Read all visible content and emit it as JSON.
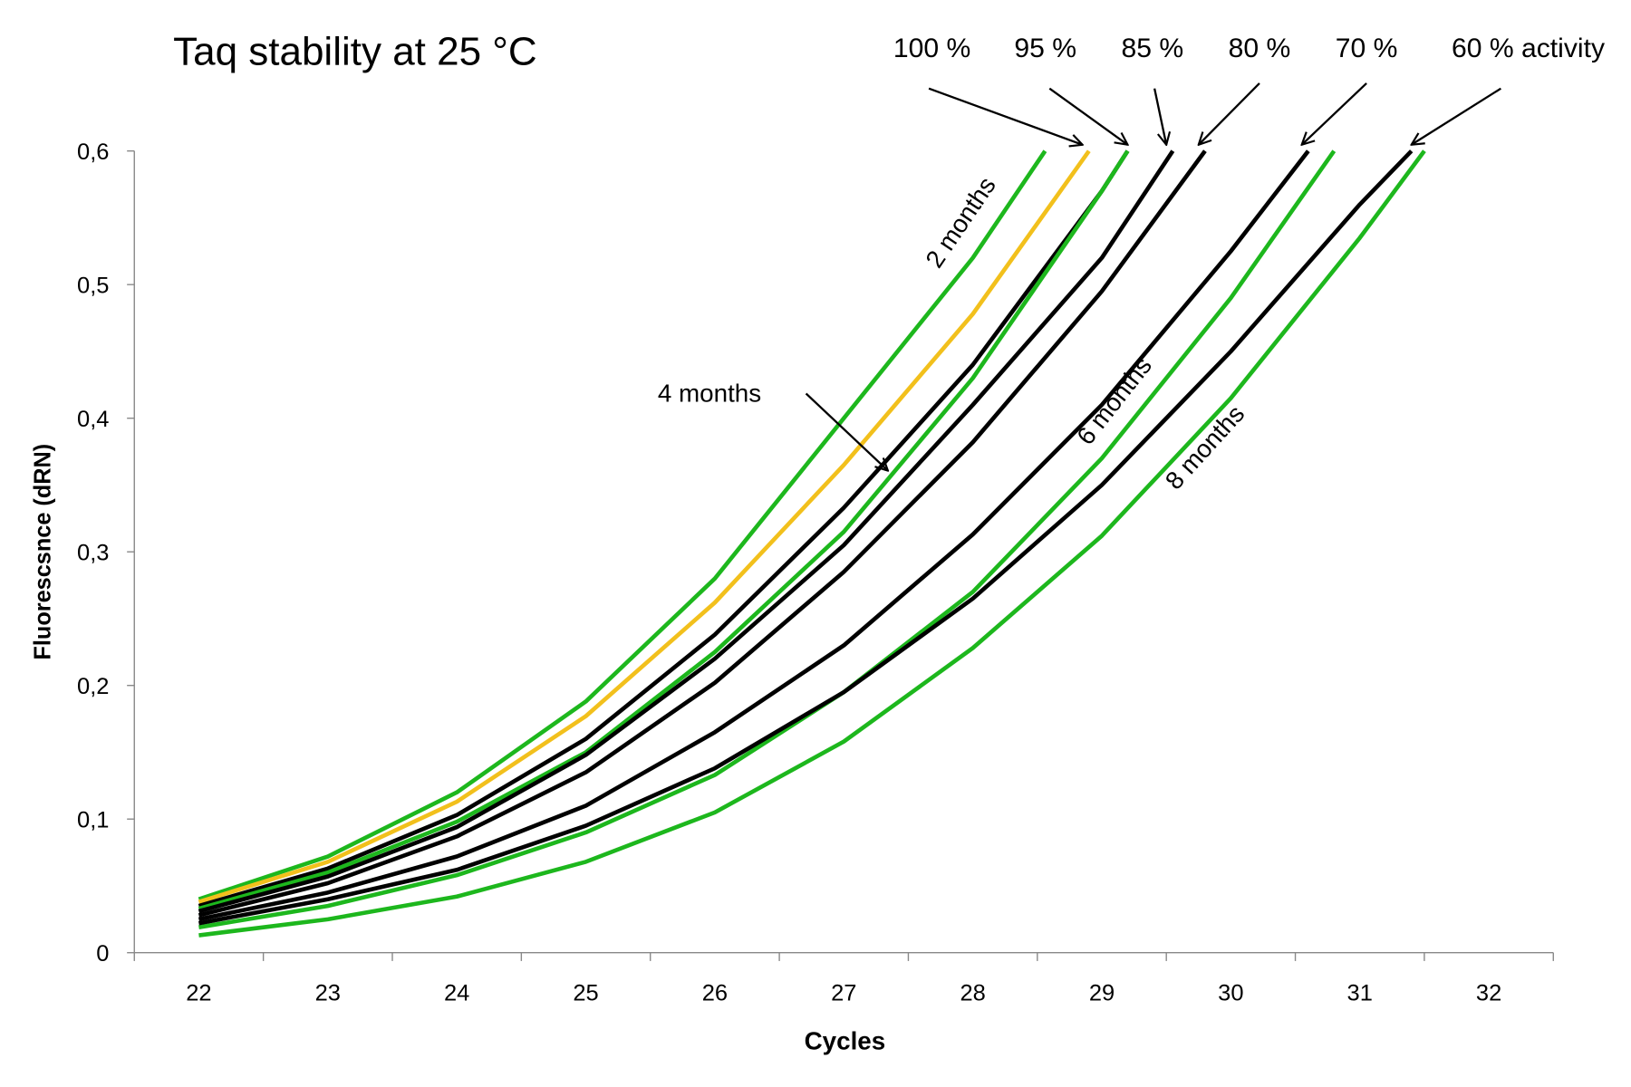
{
  "chart_data": {
    "type": "line",
    "title": "Taq stability at 25 °C",
    "xlabel": "Cycles",
    "ylabel": "Fluorescsnce (dRN)",
    "xlim": [
      21.5,
      32.5
    ],
    "ylim": [
      0,
      0.6
    ],
    "x_ticks": [
      "22",
      "23",
      "24",
      "25",
      "26",
      "27",
      "28",
      "29",
      "30",
      "31",
      "32"
    ],
    "y_ticks": [
      "0",
      "0,1",
      "0,2",
      "0,3",
      "0,4",
      "0,5",
      "0,6"
    ],
    "grid": false,
    "series": [
      {
        "name": "2 months green (100 %)",
        "color": "#1db71d",
        "x": [
          22,
          23,
          24,
          25,
          26,
          27,
          28,
          28.56
        ],
        "values": [
          0.04,
          0.072,
          0.12,
          0.188,
          0.28,
          0.4,
          0.52,
          0.6
        ]
      },
      {
        "name": "yellow (100 %)",
        "color": "#f2c01c",
        "x": [
          22,
          23,
          24,
          25,
          26,
          27,
          28,
          28.9
        ],
        "values": [
          0.038,
          0.068,
          0.113,
          0.177,
          0.262,
          0.365,
          0.478,
          0.6
        ]
      },
      {
        "name": "black 95 %",
        "color": "#000000",
        "x": [
          22,
          23,
          24,
          25,
          26,
          27,
          28,
          29,
          29.2
        ],
        "values": [
          0.035,
          0.063,
          0.103,
          0.16,
          0.238,
          0.333,
          0.44,
          0.57,
          0.6
        ]
      },
      {
        "name": "4 months green",
        "color": "#1db71d",
        "x": [
          22,
          23,
          24,
          25,
          26,
          27,
          28,
          29,
          29.2
        ],
        "values": [
          0.033,
          0.06,
          0.098,
          0.15,
          0.225,
          0.315,
          0.43,
          0.57,
          0.6
        ]
      },
      {
        "name": "black 85 %",
        "color": "#000000",
        "x": [
          22,
          23,
          24,
          25,
          26,
          27,
          28,
          29,
          29.55
        ],
        "values": [
          0.031,
          0.057,
          0.094,
          0.148,
          0.22,
          0.305,
          0.41,
          0.52,
          0.6
        ]
      },
      {
        "name": "black 80 %",
        "color": "#000000",
        "x": [
          22,
          23,
          24,
          25,
          26,
          27,
          28,
          29,
          29.8
        ],
        "values": [
          0.028,
          0.052,
          0.087,
          0.135,
          0.202,
          0.285,
          0.382,
          0.495,
          0.6
        ]
      },
      {
        "name": "black 70 %",
        "color": "#000000",
        "x": [
          22,
          23,
          24,
          25,
          26,
          27,
          28,
          29,
          30,
          30.6
        ],
        "values": [
          0.025,
          0.045,
          0.072,
          0.11,
          0.165,
          0.23,
          0.313,
          0.41,
          0.525,
          0.6
        ]
      },
      {
        "name": "6 months green",
        "color": "#1db71d",
        "x": [
          22,
          23,
          24,
          25,
          26,
          27,
          28,
          29,
          30,
          30.8
        ],
        "values": [
          0.019,
          0.035,
          0.058,
          0.09,
          0.133,
          0.195,
          0.27,
          0.37,
          0.49,
          0.6
        ]
      },
      {
        "name": "black 60 %",
        "color": "#000000",
        "x": [
          22,
          23,
          24,
          25,
          26,
          27,
          28,
          29,
          30,
          31,
          31.4
        ],
        "values": [
          0.022,
          0.04,
          0.062,
          0.095,
          0.138,
          0.195,
          0.265,
          0.35,
          0.45,
          0.56,
          0.6
        ]
      },
      {
        "name": "8 months green",
        "color": "#1db71d",
        "x": [
          22,
          23,
          24,
          25,
          26,
          27,
          28,
          29,
          30,
          31,
          31.5
        ],
        "values": [
          0.013,
          0.025,
          0.042,
          0.068,
          0.105,
          0.158,
          0.228,
          0.312,
          0.415,
          0.535,
          0.6
        ]
      }
    ],
    "annotations": {
      "activity_labels": [
        "100 %",
        "95 %",
        "85 %",
        "80 %",
        "70 %",
        "60 % activity"
      ],
      "activity_targets_x": [
        28.85,
        29.2,
        29.5,
        29.75,
        30.55,
        31.4
      ],
      "month_labels": [
        "2 months",
        "4 months",
        "6 months",
        "8 months"
      ]
    }
  }
}
